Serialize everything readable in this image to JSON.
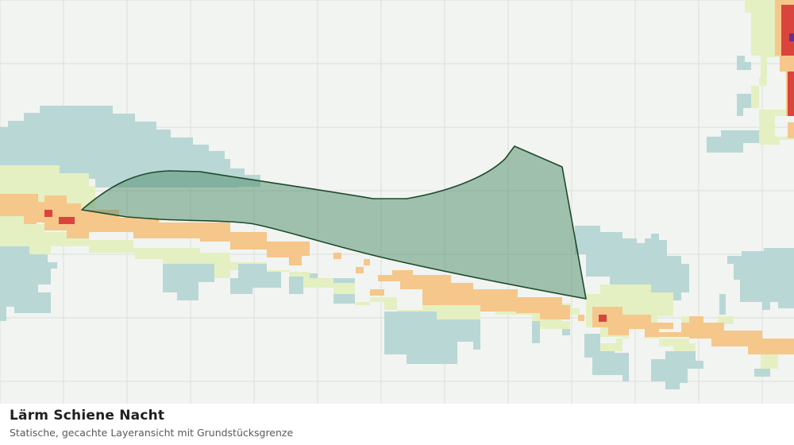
{
  "caption": {
    "title": "Lärm Schiene Nacht",
    "subtitle": "Statische, gecachte Layeransicht mit Grundstücksgrenze"
  },
  "colors": {
    "background": "#f2f4f2",
    "grid": "#dcdedc",
    "noise_teal": "#b9d7d5",
    "noise_light_green": "#e4f0c2",
    "noise_orange": "#f5c78a",
    "noise_red": "#d9453d",
    "noise_purple": "#6b2d8c",
    "parcel_fill": "#4e8c6a",
    "parcel_stroke": "#1e4a2a"
  },
  "map": {
    "layer": "noise-rail-night",
    "feature": "parcel-boundary"
  }
}
